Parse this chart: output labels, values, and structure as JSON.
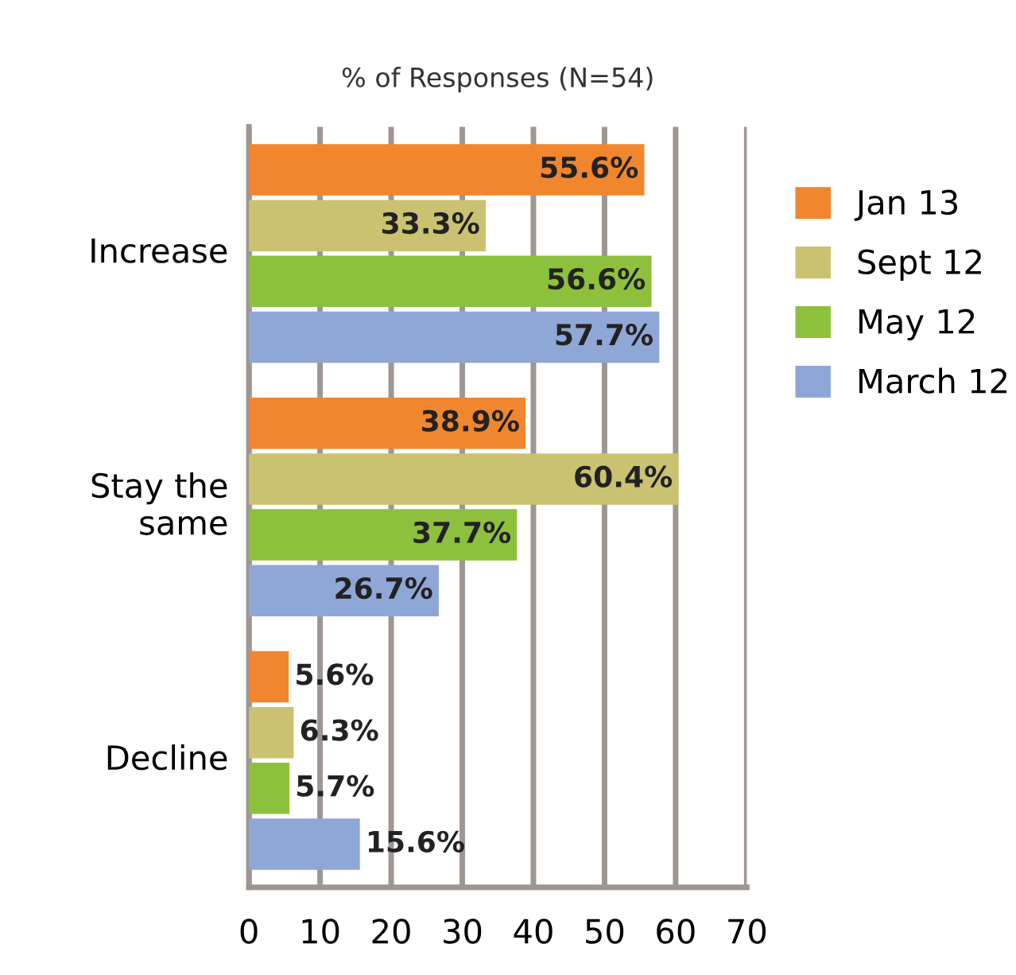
{
  "chart_data": {
    "type": "bar",
    "orientation": "horizontal",
    "title": "% of Responses (N=54)",
    "categories": [
      "Increase",
      "Stay the same",
      "Decline"
    ],
    "series": [
      {
        "name": "Jan 13",
        "color": "#f0862e",
        "values": [
          55.6,
          38.9,
          5.6
        ],
        "value_labels": [
          "55.6%",
          "38.9%",
          "5.6%"
        ]
      },
      {
        "name": "Sept 12",
        "color": "#cbc271",
        "values": [
          33.3,
          60.4,
          6.3
        ],
        "value_labels": [
          "33.3%",
          "60.4%",
          "6.3%"
        ]
      },
      {
        "name": "May 12",
        "color": "#8dc13d",
        "values": [
          56.6,
          37.7,
          5.7
        ],
        "value_labels": [
          "56.6%",
          "37.7%",
          "5.7%"
        ]
      },
      {
        "name": "March 12",
        "color": "#8fa7d6",
        "values": [
          57.7,
          26.7,
          15.6
        ],
        "value_labels": [
          "57.7%",
          "26.7%",
          "15.6%"
        ]
      }
    ],
    "xlim": [
      0,
      70
    ],
    "xticks": [
      0,
      10,
      20,
      30,
      40,
      50,
      60,
      70
    ],
    "grid": "x",
    "legend": "right"
  }
}
